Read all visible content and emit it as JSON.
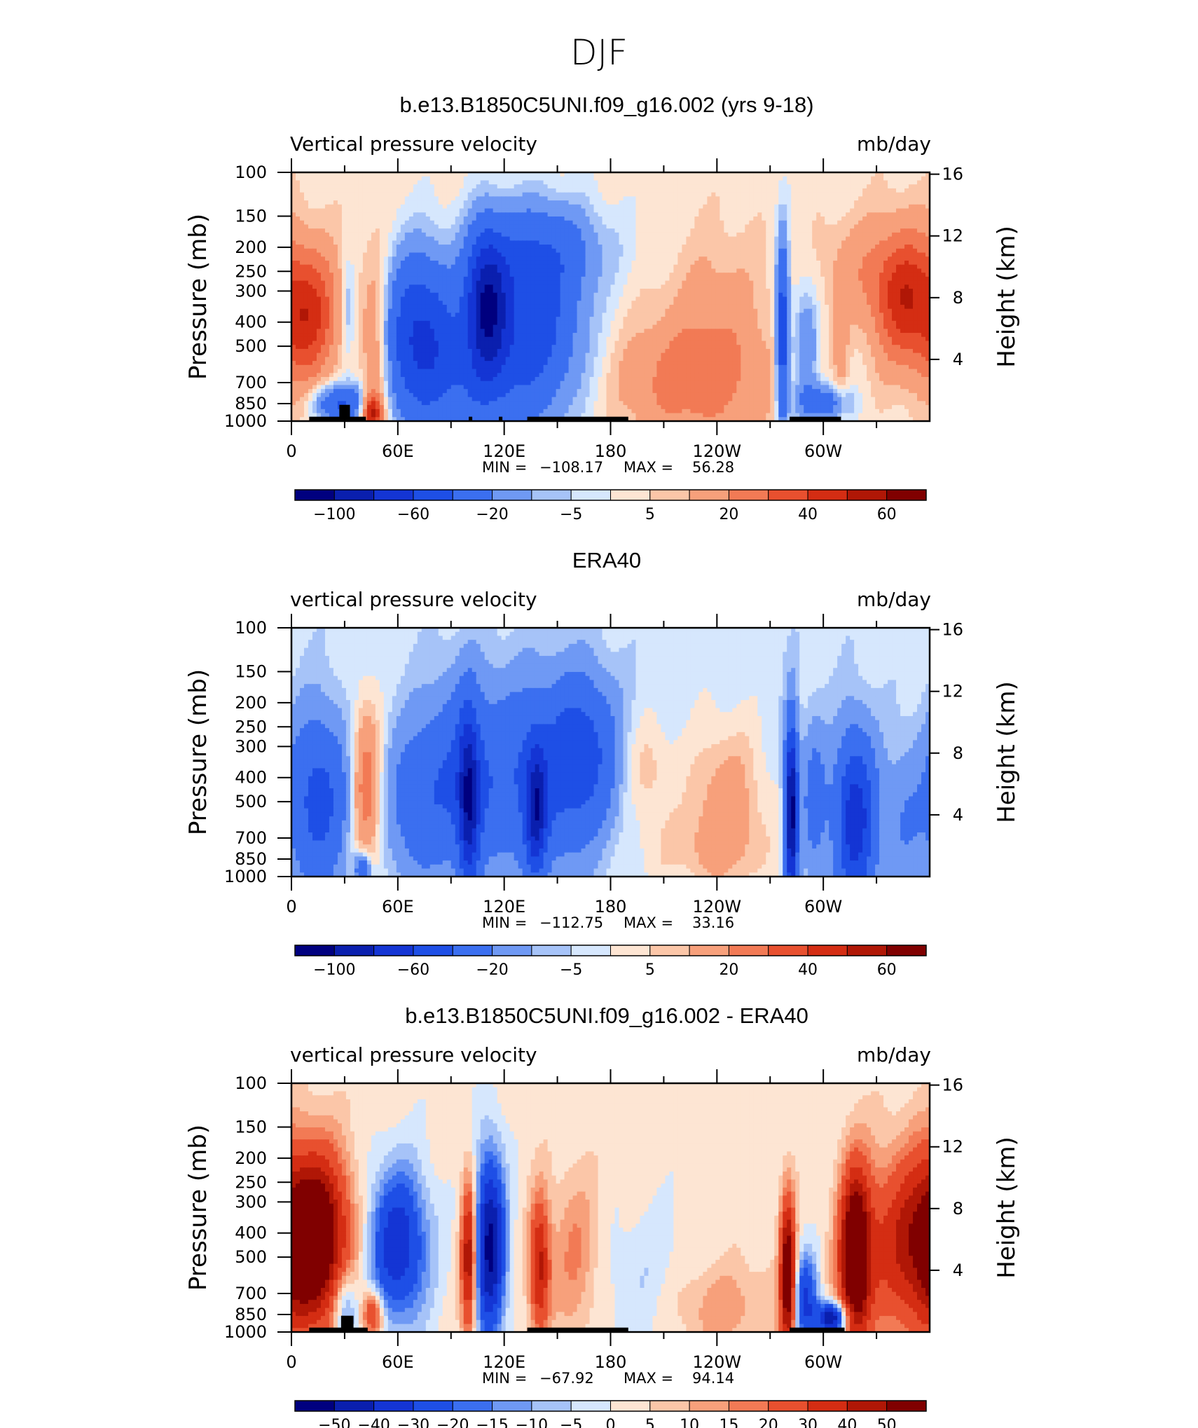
{
  "figure": {
    "title": "DJF"
  },
  "colors": {
    "model_ramp": [
      "#00007f",
      "#0a1fae",
      "#1435d4",
      "#1e4fe6",
      "#3b6ff0",
      "#6f99f4",
      "#a6c3f8",
      "#d6e7fd",
      "#fde5d3",
      "#fbc6a8",
      "#f7a07b",
      "#f27a55",
      "#e8502f",
      "#d42d13",
      "#b01706",
      "#800000"
    ],
    "diff_ramp": [
      "#00007f",
      "#0a1fae",
      "#1435d4",
      "#1e4fe6",
      "#3b6ff0",
      "#6f99f4",
      "#a6c3f8",
      "#d6e7fd",
      "#fde5d3",
      "#fbc6a8",
      "#f7a07b",
      "#f27a55",
      "#e8502f",
      "#d42d13",
      "#b01706",
      "#800000"
    ],
    "topography": "#000000"
  },
  "chart_data": [
    {
      "type": "heatmap",
      "title": "b.e13.B1850C5UNI.f09_g16.002 (yrs 9-18)",
      "left_label": "Vertical pressure velocity",
      "right_label": "mb/day",
      "ylabel": "Pressure (mb)",
      "ylabel_right": "Height (km)",
      "x_ticks": [
        "0",
        "60E",
        "120E",
        "180",
        "120W",
        "60W"
      ],
      "x_range": [
        0,
        360
      ],
      "y_ticks": [
        "100",
        "150",
        "200",
        "250",
        "300",
        "400",
        "500",
        "700",
        "850",
        "1000"
      ],
      "y_range_mb": [
        1000,
        100
      ],
      "y_log_scale": true,
      "right_ticks": [
        "16",
        "12",
        "8",
        "4"
      ],
      "min_label": "MIN =",
      "min_value": "−108.17",
      "max_label": "MAX =",
      "max_value": "56.28",
      "colorbar_labels": [
        "−100",
        "−60",
        "−20",
        "−5",
        "5",
        "20",
        "40",
        "60"
      ],
      "pattern": {
        "bg": 2.5,
        "blobs": [
          {
            "lon": 10,
            "p": 380,
            "w": 12,
            "h": 0.45,
            "v": 42
          },
          {
            "lon": 48,
            "p": 600,
            "w": 6,
            "h": 0.65,
            "v": 30
          },
          {
            "lon": 45,
            "p": 920,
            "w": 4,
            "h": 0.12,
            "v": 48
          },
          {
            "lon": 28,
            "p": 850,
            "w": 10,
            "h": 0.12,
            "v": -45
          },
          {
            "lon": 32,
            "p": 350,
            "w": 2.5,
            "h": 0.3,
            "v": -14
          },
          {
            "lon": 72,
            "p": 420,
            "w": 14,
            "h": 0.5,
            "v": -55
          },
          {
            "lon": 110,
            "p": 330,
            "w": 8,
            "h": 0.45,
            "v": -80
          },
          {
            "lon": 135,
            "p": 360,
            "w": 20,
            "h": 0.55,
            "v": -48
          },
          {
            "lon": 100,
            "p": 700,
            "w": 35,
            "h": 0.45,
            "v": -30
          },
          {
            "lon": 145,
            "p": 200,
            "w": 25,
            "h": 0.3,
            "v": -20
          },
          {
            "lon": 225,
            "p": 700,
            "w": 30,
            "h": 0.4,
            "v": 22
          },
          {
            "lon": 240,
            "p": 350,
            "w": 20,
            "h": 0.5,
            "v": 10
          },
          {
            "lon": 277,
            "p": 450,
            "w": 2.5,
            "h": 0.6,
            "v": -60
          },
          {
            "lon": 290,
            "p": 500,
            "w": 5,
            "h": 0.4,
            "v": -22
          },
          {
            "lon": 300,
            "p": 850,
            "w": 10,
            "h": 0.12,
            "v": -35
          },
          {
            "lon": 310,
            "p": 600,
            "w": 3,
            "h": 0.5,
            "v": 10
          },
          {
            "lon": 345,
            "p": 320,
            "w": 12,
            "h": 0.45,
            "v": 40
          },
          {
            "lon": 320,
            "p": 250,
            "w": 15,
            "h": 0.35,
            "v": 12
          }
        ]
      },
      "topography": [
        [
          10,
          42,
          960
        ],
        [
          27,
          33,
          860
        ],
        [
          100,
          102,
          960
        ],
        [
          117,
          119,
          960
        ],
        [
          133,
          190,
          960
        ],
        [
          281,
          310,
          960
        ]
      ]
    },
    {
      "type": "heatmap",
      "title": "ERA40",
      "left_label": "vertical pressure velocity",
      "right_label": "mb/day",
      "ylabel": "Pressure (mb)",
      "ylabel_right": "Height (km)",
      "x_ticks": [
        "0",
        "60E",
        "120E",
        "180",
        "120W",
        "60W"
      ],
      "x_range": [
        0,
        360
      ],
      "y_ticks": [
        "100",
        "150",
        "200",
        "250",
        "300",
        "400",
        "500",
        "700",
        "850",
        "1000"
      ],
      "y_range_mb": [
        1000,
        100
      ],
      "y_log_scale": true,
      "right_ticks": [
        "16",
        "12",
        "8",
        "4"
      ],
      "min_label": "MIN =",
      "min_value": "−112.75",
      "max_label": "MAX =",
      "max_value": "33.16",
      "colorbar_labels": [
        "−100",
        "−60",
        "−20",
        "−5",
        "5",
        "20",
        "40",
        "60"
      ],
      "pattern": {
        "bg": -3,
        "blobs": [
          {
            "lon": 15,
            "p": 500,
            "w": 12,
            "h": 0.55,
            "v": -45
          },
          {
            "lon": 42,
            "p": 450,
            "w": 6,
            "h": 0.55,
            "v": 32
          },
          {
            "lon": 40,
            "p": 930,
            "w": 3,
            "h": 0.1,
            "v": -40
          },
          {
            "lon": 70,
            "p": 500,
            "w": 12,
            "h": 0.5,
            "v": -25
          },
          {
            "lon": 100,
            "p": 500,
            "w": 4,
            "h": 0.55,
            "v": -70
          },
          {
            "lon": 95,
            "p": 400,
            "w": 14,
            "h": 0.6,
            "v": -30
          },
          {
            "lon": 140,
            "p": 400,
            "w": 25,
            "h": 0.6,
            "v": -40
          },
          {
            "lon": 138,
            "p": 550,
            "w": 4,
            "h": 0.4,
            "v": -65
          },
          {
            "lon": 165,
            "p": 300,
            "w": 12,
            "h": 0.45,
            "v": -30
          },
          {
            "lon": 200,
            "p": 380,
            "w": 10,
            "h": 0.35,
            "v": 12
          },
          {
            "lon": 245,
            "p": 500,
            "w": 15,
            "h": 0.5,
            "v": 18
          },
          {
            "lon": 230,
            "p": 800,
            "w": 30,
            "h": 0.25,
            "v": 8
          },
          {
            "lon": 282,
            "p": 550,
            "w": 2.5,
            "h": 0.55,
            "v": -110
          },
          {
            "lon": 295,
            "p": 500,
            "w": 5,
            "h": 0.5,
            "v": -25
          },
          {
            "lon": 318,
            "p": 600,
            "w": 8,
            "h": 0.55,
            "v": -70
          },
          {
            "lon": 345,
            "p": 600,
            "w": 8,
            "h": 0.5,
            "v": -15
          }
        ]
      },
      "topography": []
    },
    {
      "type": "heatmap",
      "title": "b.e13.B1850C5UNI.f09_g16.002 - ERA40",
      "left_label": "vertical pressure velocity",
      "right_label": "mb/day",
      "ylabel": "Pressure (mb)",
      "ylabel_right": "Height (km)",
      "x_ticks": [
        "0",
        "60E",
        "120E",
        "180",
        "120W",
        "60W"
      ],
      "x_range": [
        0,
        360
      ],
      "y_ticks": [
        "100",
        "150",
        "200",
        "250",
        "300",
        "400",
        "500",
        "700",
        "850",
        "1000"
      ],
      "y_range_mb": [
        1000,
        100
      ],
      "y_log_scale": true,
      "right_ticks": [
        "16",
        "12",
        "8",
        "4"
      ],
      "min_label": "MIN =",
      "min_value": "−67.92",
      "max_label": "MAX =",
      "max_value": "94.14",
      "colorbar_labels": [
        "−50",
        "−40",
        "−30",
        "−20",
        "−15",
        "−10",
        "−5",
        "0",
        "5",
        "10",
        "15",
        "20",
        "30",
        "40",
        "50"
      ],
      "pattern": {
        "bg": 2,
        "blobs": [
          {
            "lon": 12,
            "p": 420,
            "w": 14,
            "h": 0.55,
            "v": 70
          },
          {
            "lon": 30,
            "p": 800,
            "w": 5,
            "h": 0.25,
            "v": -25
          },
          {
            "lon": 46,
            "p": 850,
            "w": 4,
            "h": 0.15,
            "v": 35
          },
          {
            "lon": 60,
            "p": 450,
            "w": 12,
            "h": 0.5,
            "v": -40
          },
          {
            "lon": 100,
            "p": 500,
            "w": 3,
            "h": 0.5,
            "v": 50
          },
          {
            "lon": 112,
            "p": 450,
            "w": 6,
            "h": 0.6,
            "v": -55
          },
          {
            "lon": 140,
            "p": 550,
            "w": 4,
            "h": 0.45,
            "v": 40
          },
          {
            "lon": 160,
            "p": 500,
            "w": 10,
            "h": 0.55,
            "v": 14
          },
          {
            "lon": 200,
            "p": 700,
            "w": 20,
            "h": 0.5,
            "v": -8
          },
          {
            "lon": 240,
            "p": 800,
            "w": 25,
            "h": 0.3,
            "v": 12
          },
          {
            "lon": 280,
            "p": 600,
            "w": 3,
            "h": 0.5,
            "v": 65
          },
          {
            "lon": 290,
            "p": 750,
            "w": 5,
            "h": 0.3,
            "v": -35
          },
          {
            "lon": 305,
            "p": 880,
            "w": 6,
            "h": 0.1,
            "v": -55
          },
          {
            "lon": 318,
            "p": 500,
            "w": 6,
            "h": 0.55,
            "v": 70
          },
          {
            "lon": 345,
            "p": 450,
            "w": 18,
            "h": 0.6,
            "v": 32
          }
        ]
      },
      "topography": [
        [
          10,
          43,
          960
        ],
        [
          28,
          35,
          860
        ],
        [
          133,
          190,
          960
        ],
        [
          281,
          312,
          960
        ]
      ]
    }
  ]
}
